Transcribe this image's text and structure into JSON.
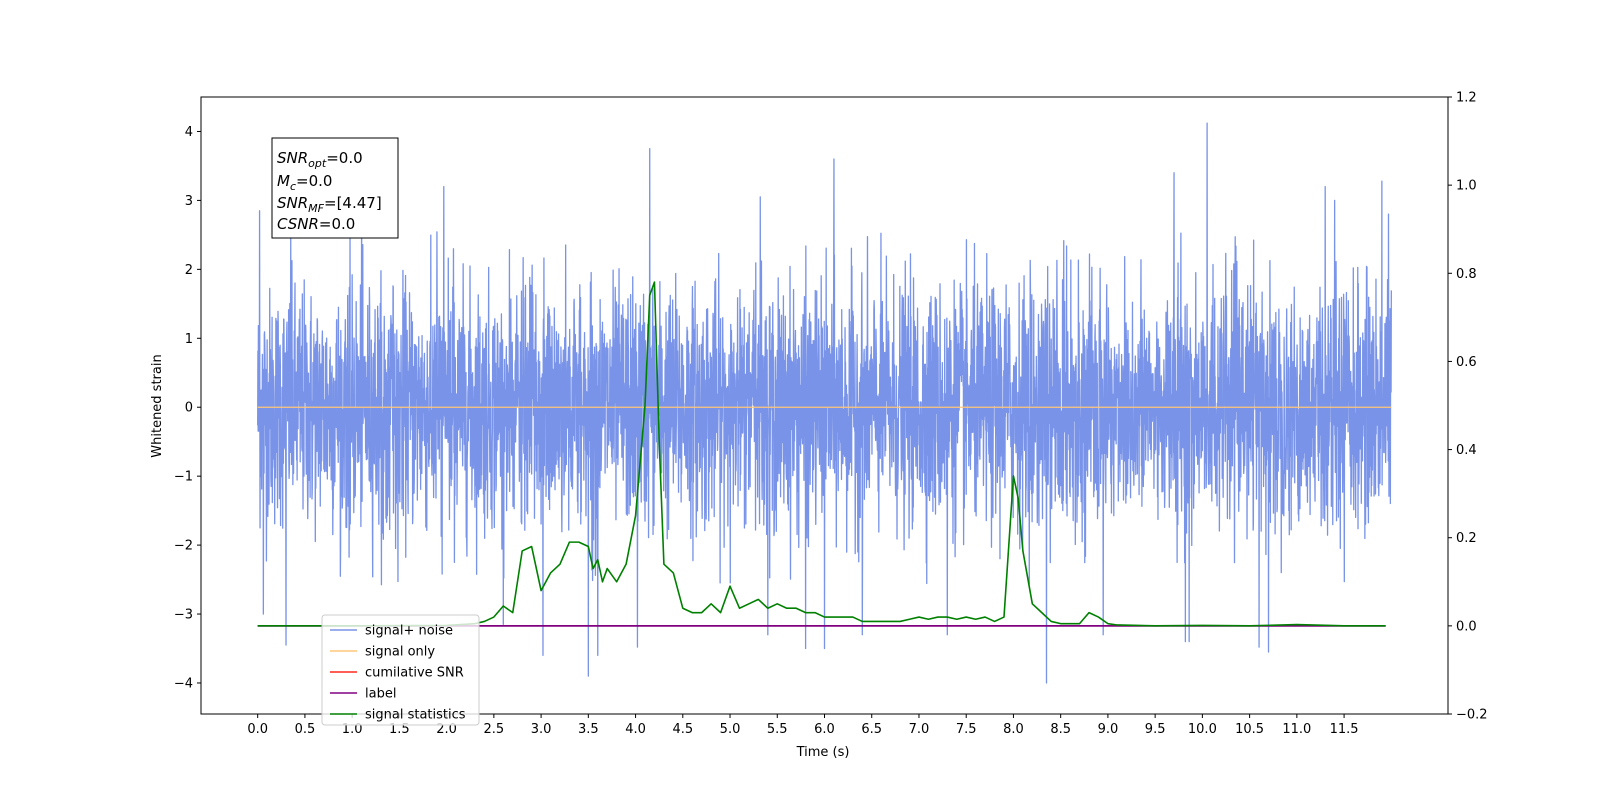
{
  "chart_data": {
    "type": "line",
    "xlabel": "Time (s)",
    "ylabel": "Whitened strain",
    "xlim": [
      -0.6,
      12.6
    ],
    "ylim": [
      -4.45,
      4.5
    ],
    "y2lim": [
      -0.2,
      1.2
    ],
    "x_ticks": [
      0.0,
      0.5,
      1.0,
      1.5,
      2.0,
      2.5,
      3.0,
      3.5,
      4.0,
      4.5,
      5.0,
      5.5,
      6.0,
      6.5,
      7.0,
      7.5,
      8.0,
      8.5,
      9.0,
      9.5,
      10.0,
      10.5,
      11.0,
      11.5
    ],
    "x_tick_labels": [
      "0.0",
      "0.5",
      "1.0",
      "1.5",
      "2.0",
      "2.5",
      "3.0",
      "3.5",
      "4.0",
      "4.5",
      "5.0",
      "5.5",
      "6.0",
      "6.5",
      "7.0",
      "7.5",
      "8.0",
      "8.5",
      "9.0",
      "9.5",
      "10.0",
      "10.5",
      "11.0",
      "11.5"
    ],
    "y_ticks": [
      -4,
      -3,
      -2,
      -1,
      0,
      1,
      2,
      3,
      4
    ],
    "y_tick_labels": [
      "−4",
      "−3",
      "−2",
      "−1",
      "0",
      "1",
      "2",
      "3",
      "4"
    ],
    "y2_ticks": [
      -0.2,
      0.0,
      0.2,
      0.4,
      0.6,
      0.8,
      1.0,
      1.2
    ],
    "y2_tick_labels": [
      "−0.2",
      "0.0",
      "0.2",
      "0.4",
      "0.6",
      "0.8",
      "1.0",
      "1.2"
    ],
    "grid": false,
    "legend_position": "lower-left",
    "series": [
      {
        "name": "signal+ noise",
        "axis": "left",
        "color": "#7893e8",
        "x_range": [
          0,
          12
        ],
        "noise_sigma": 0.85,
        "peaks": [
          [
            0.02,
            2.85
          ],
          [
            0.06,
            -3.0
          ],
          [
            0.3,
            -3.45
          ],
          [
            0.35,
            2.5
          ],
          [
            1.1,
            2.95
          ],
          [
            1.97,
            3.2
          ],
          [
            2.6,
            -3.15
          ],
          [
            3.02,
            -3.6
          ],
          [
            3.5,
            -3.9
          ],
          [
            3.6,
            -3.6
          ],
          [
            4.02,
            -3.48
          ],
          [
            4.15,
            3.75
          ],
          [
            5.32,
            3.05
          ],
          [
            5.4,
            -3.3
          ],
          [
            5.8,
            -3.5
          ],
          [
            6.0,
            -3.5
          ],
          [
            6.1,
            3.6
          ],
          [
            6.4,
            -3.3
          ],
          [
            7.3,
            -3.3
          ],
          [
            8.35,
            -4.0
          ],
          [
            8.95,
            -3.3
          ],
          [
            9.7,
            3.4
          ],
          [
            9.82,
            -3.4
          ],
          [
            9.86,
            -3.4
          ],
          [
            10.05,
            4.12
          ],
          [
            10.6,
            -3.48
          ],
          [
            10.7,
            -3.55
          ],
          [
            11.3,
            3.2
          ],
          [
            11.4,
            3.0
          ],
          [
            11.9,
            3.28
          ],
          [
            11.97,
            2.8
          ]
        ]
      },
      {
        "name": "signal only",
        "axis": "left",
        "color": "#ffc77a",
        "x": [
          0,
          12
        ],
        "y": [
          0,
          0
        ]
      },
      {
        "name": "cumilative SNR",
        "axis": "right",
        "color": "#ff2a1f",
        "x": [],
        "y": []
      },
      {
        "name": "label",
        "axis": "right",
        "color": "#800080",
        "x": [
          0,
          11.94
        ],
        "y": [
          0,
          0
        ]
      },
      {
        "name": "signal statistics",
        "axis": "right",
        "color": "#008000",
        "x": [
          0.0,
          1.0,
          2.0,
          2.3,
          2.4,
          2.5,
          2.6,
          2.7,
          2.8,
          2.9,
          3.0,
          3.1,
          3.2,
          3.3,
          3.4,
          3.5,
          3.55,
          3.6,
          3.65,
          3.7,
          3.8,
          3.9,
          4.0,
          4.1,
          4.15,
          4.2,
          4.25,
          4.3,
          4.4,
          4.5,
          4.6,
          4.7,
          4.8,
          4.9,
          5.0,
          5.1,
          5.2,
          5.3,
          5.4,
          5.5,
          5.6,
          5.7,
          5.8,
          5.9,
          6.0,
          6.1,
          6.2,
          6.3,
          6.4,
          6.5,
          6.6,
          6.7,
          6.8,
          6.9,
          7.0,
          7.1,
          7.2,
          7.3,
          7.4,
          7.5,
          7.6,
          7.7,
          7.8,
          7.9,
          8.0,
          8.05,
          8.1,
          8.2,
          8.3,
          8.4,
          8.5,
          8.6,
          8.7,
          8.8,
          8.9,
          9.0,
          9.1,
          9.5,
          10.0,
          10.5,
          11.0,
          11.5,
          11.94
        ],
        "y": [
          0.0,
          0.0,
          0.001,
          0.005,
          0.01,
          0.02,
          0.045,
          0.03,
          0.17,
          0.18,
          0.08,
          0.12,
          0.14,
          0.19,
          0.19,
          0.18,
          0.13,
          0.15,
          0.1,
          0.13,
          0.1,
          0.14,
          0.25,
          0.5,
          0.75,
          0.78,
          0.42,
          0.14,
          0.12,
          0.04,
          0.03,
          0.03,
          0.05,
          0.03,
          0.09,
          0.04,
          0.05,
          0.06,
          0.04,
          0.05,
          0.04,
          0.04,
          0.03,
          0.03,
          0.02,
          0.02,
          0.02,
          0.02,
          0.01,
          0.01,
          0.01,
          0.01,
          0.01,
          0.015,
          0.02,
          0.015,
          0.02,
          0.02,
          0.015,
          0.02,
          0.015,
          0.02,
          0.01,
          0.02,
          0.34,
          0.29,
          0.17,
          0.05,
          0.03,
          0.01,
          0.005,
          0.005,
          0.005,
          0.03,
          0.02,
          0.005,
          0.002,
          0.0,
          0.001,
          0.0,
          0.003,
          0.0,
          0.0
        ]
      }
    ]
  },
  "info_box": {
    "line1_sym": "SNR",
    "line1_sub": "opt",
    "line1_val": "=0.0",
    "line2_sym": "M",
    "line2_sub": "c",
    "line2_val": "=0.0",
    "line3_sym": "SNR",
    "line3_sub": "MF",
    "line3_val": "=[4.47]",
    "line4_sym": "CSNR",
    "line4_sub": "",
    "line4_val": "=0.0"
  }
}
